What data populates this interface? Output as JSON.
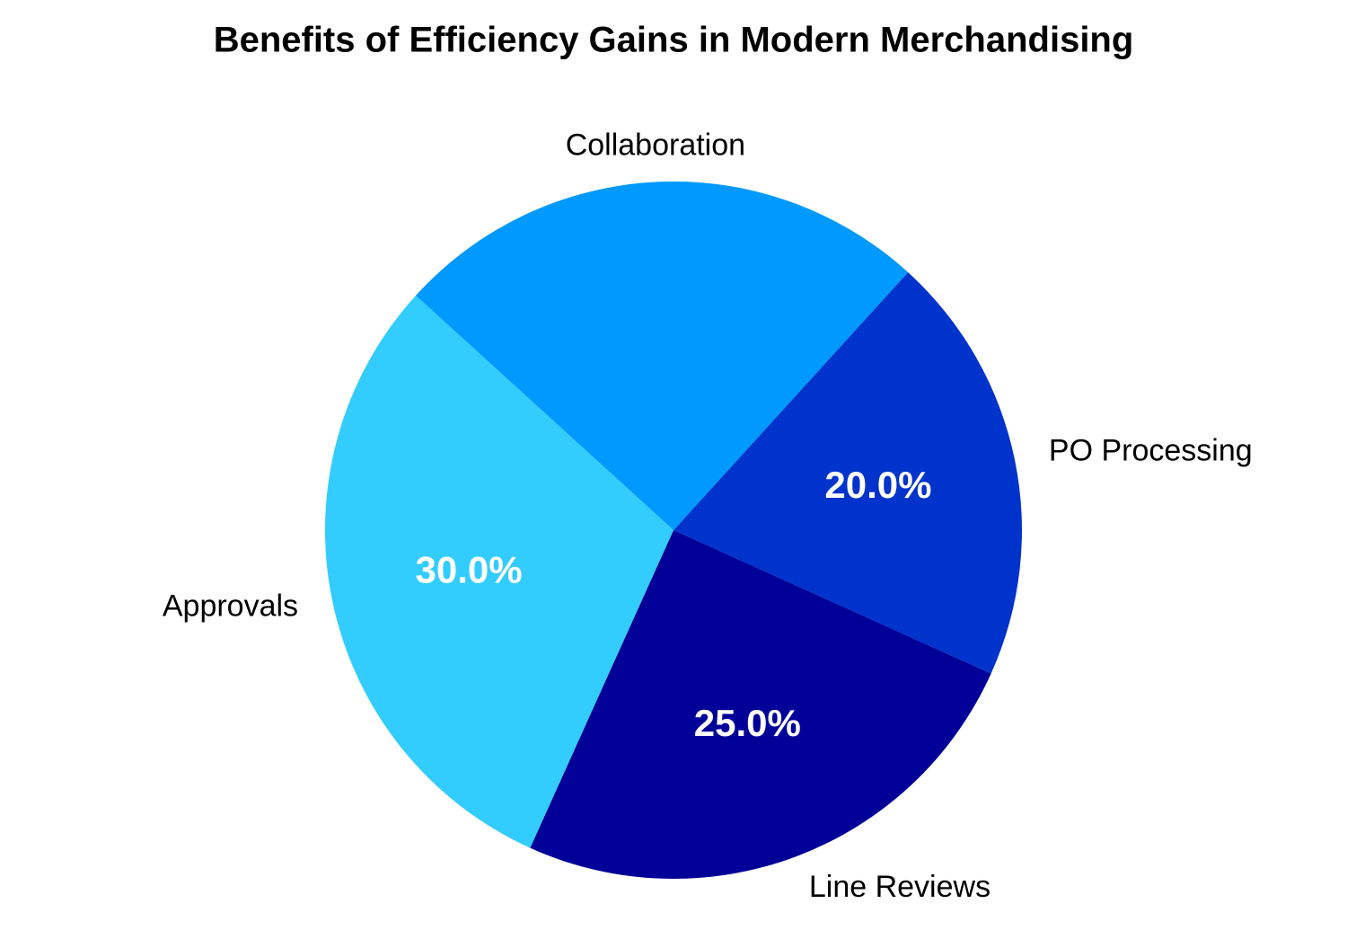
{
  "chart_data": {
    "type": "pie",
    "title": "Benefits of Efficiency Gains in Modern Merchandising",
    "categories": [
      "PO Processing",
      "Line Reviews",
      "Approvals",
      "Collaboration"
    ],
    "values": [
      20,
      25,
      30,
      25
    ],
    "value_labels": [
      "20.0%",
      "25.0%",
      "30.0%",
      null
    ],
    "colors": [
      "#0033cc",
      "#000099",
      "#33ccff",
      "#0099ff"
    ]
  }
}
